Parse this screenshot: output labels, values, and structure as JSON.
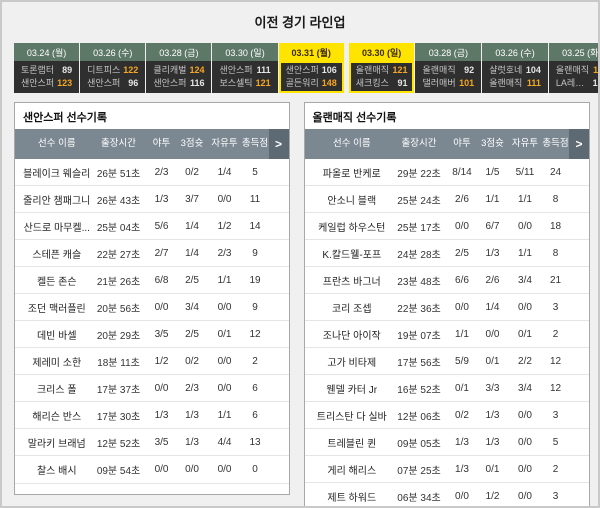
{
  "page_title": "이전 경기 라인업",
  "colors": {
    "highlight_yellow": "#ffe400",
    "win_score_orange": "#f5a623",
    "date_header_green": "#5e7868",
    "score_box_dark": "#2f2f2f",
    "table_header_gray": "#7b8791"
  },
  "recent_games": {
    "left": [
      {
        "date": "03.24 (월)",
        "highlight": false,
        "lines": [
          {
            "team": "토론랩터",
            "score": "89",
            "win": false
          },
          {
            "team": "샌안스퍼",
            "score": "123",
            "win": true
          }
        ]
      },
      {
        "date": "03.26 (수)",
        "highlight": false,
        "lines": [
          {
            "team": "디트피스",
            "score": "122",
            "win": true
          },
          {
            "team": "샌안스퍼",
            "score": "96",
            "win": false
          }
        ]
      },
      {
        "date": "03.28 (금)",
        "highlight": false,
        "lines": [
          {
            "team": "클리캐벌",
            "score": "124",
            "win": true
          },
          {
            "team": "샌안스퍼",
            "score": "116",
            "win": false
          }
        ]
      },
      {
        "date": "03.30 (일)",
        "highlight": false,
        "lines": [
          {
            "team": "샌안스퍼",
            "score": "111",
            "win": false
          },
          {
            "team": "보스셀틱",
            "score": "121",
            "win": true
          }
        ]
      },
      {
        "date": "03.31 (월)",
        "highlight": true,
        "lines": [
          {
            "team": "샌안스퍼",
            "score": "106",
            "win": false
          },
          {
            "team": "골든워리",
            "score": "148",
            "win": true
          }
        ]
      }
    ],
    "right": [
      {
        "date": "03.30 (일)",
        "highlight": true,
        "lines": [
          {
            "team": "올랜매직",
            "score": "121",
            "win": true
          },
          {
            "team": "새크킹스",
            "score": "91",
            "win": false
          }
        ]
      },
      {
        "date": "03.28 (금)",
        "highlight": false,
        "lines": [
          {
            "team": "올랜매직",
            "score": "92",
            "win": false
          },
          {
            "team": "댈러매버",
            "score": "101",
            "win": true
          }
        ]
      },
      {
        "date": "03.26 (수)",
        "highlight": false,
        "lines": [
          {
            "team": "샬럿호네",
            "score": "104",
            "win": false
          },
          {
            "team": "올랜매직",
            "score": "111",
            "win": true
          }
        ]
      },
      {
        "date": "03.25 (화)",
        "highlight": false,
        "lines": [
          {
            "team": "올랜매직",
            "score": "118",
            "win": true
          },
          {
            "team": "LA레이커",
            "score": "106",
            "win": false
          }
        ]
      },
      {
        "date": "03.22 (토)",
        "highlight": false,
        "lines": [
          {
            "team": "워싱위저",
            "score": "105",
            "win": false
          },
          {
            "team": "올랜매직",
            "score": "120",
            "win": true
          }
        ]
      }
    ]
  },
  "player_tables": [
    {
      "title": "샌안스퍼 선수기록",
      "columns": [
        "선수 이름",
        "출장시간",
        "야투",
        "3점슛",
        "자유투",
        "총득점"
      ],
      "more_chevron": ">",
      "rows": [
        {
          "name": "블레이크 웨슬리",
          "time": "26분 51초",
          "fg": "2/3",
          "tp": "0/2",
          "ft": "1/4",
          "pts": "5"
        },
        {
          "name": "줄리안 챔패그니",
          "time": "26분 43초",
          "fg": "1/3",
          "tp": "3/7",
          "ft": "0/0",
          "pts": "11"
        },
        {
          "name": "산드로 마무켈...",
          "time": "25분 04초",
          "fg": "5/6",
          "tp": "1/4",
          "ft": "1/2",
          "pts": "14"
        },
        {
          "name": "스테픈 캐슬",
          "time": "22분 27초",
          "fg": "2/7",
          "tp": "1/4",
          "ft": "2/3",
          "pts": "9"
        },
        {
          "name": "켈든 존슨",
          "time": "21분 26초",
          "fg": "6/8",
          "tp": "2/5",
          "ft": "1/1",
          "pts": "19"
        },
        {
          "name": "조던 맥러플린",
          "time": "20분 56초",
          "fg": "0/0",
          "tp": "3/4",
          "ft": "0/0",
          "pts": "9"
        },
        {
          "name": "데빈 바셀",
          "time": "20분 29초",
          "fg": "3/5",
          "tp": "2/5",
          "ft": "0/1",
          "pts": "12"
        },
        {
          "name": "제레미 소한",
          "time": "18분 11초",
          "fg": "1/2",
          "tp": "0/2",
          "ft": "0/0",
          "pts": "2"
        },
        {
          "name": "크리스 폴",
          "time": "17분 37초",
          "fg": "0/0",
          "tp": "2/3",
          "ft": "0/0",
          "pts": "6"
        },
        {
          "name": "해리슨 반스",
          "time": "17분 30초",
          "fg": "1/3",
          "tp": "1/3",
          "ft": "1/1",
          "pts": "6"
        },
        {
          "name": "말라키 브래넘",
          "time": "12분 52초",
          "fg": "3/5",
          "tp": "1/3",
          "ft": "4/4",
          "pts": "13"
        },
        {
          "name": "찰스 배시",
          "time": "09분 54초",
          "fg": "0/0",
          "tp": "0/0",
          "ft": "0/0",
          "pts": "0"
        }
      ]
    },
    {
      "title": "올랜매직 선수기록",
      "columns": [
        "선수 이름",
        "출장시간",
        "야투",
        "3점슛",
        "자유투",
        "총득점"
      ],
      "more_chevron": ">",
      "rows": [
        {
          "name": "파올로 반케로",
          "time": "29분 22초",
          "fg": "8/14",
          "tp": "1/5",
          "ft": "5/11",
          "pts": "24"
        },
        {
          "name": "안소니 블랙",
          "time": "25분 24초",
          "fg": "2/6",
          "tp": "1/1",
          "ft": "1/1",
          "pts": "8"
        },
        {
          "name": "케일럽 하우스턴",
          "time": "25분 17초",
          "fg": "0/0",
          "tp": "6/7",
          "ft": "0/0",
          "pts": "18"
        },
        {
          "name": "K.칼드웰-포프",
          "time": "24분 28초",
          "fg": "2/5",
          "tp": "1/3",
          "ft": "1/1",
          "pts": "8"
        },
        {
          "name": "프란츠 바그너",
          "time": "23분 48초",
          "fg": "6/6",
          "tp": "2/6",
          "ft": "3/4",
          "pts": "21"
        },
        {
          "name": "코리 조셉",
          "time": "22분 36초",
          "fg": "0/0",
          "tp": "1/4",
          "ft": "0/0",
          "pts": "3"
        },
        {
          "name": "조나단 아이작",
          "time": "19분 07초",
          "fg": "1/1",
          "tp": "0/0",
          "ft": "0/1",
          "pts": "2"
        },
        {
          "name": "고가 비타제",
          "time": "17분 56초",
          "fg": "5/9",
          "tp": "0/1",
          "ft": "2/2",
          "pts": "12"
        },
        {
          "name": "웬델 카터 Jr",
          "time": "16분 52초",
          "fg": "0/1",
          "tp": "3/3",
          "ft": "3/4",
          "pts": "12"
        },
        {
          "name": "트리스탄 다 실바",
          "time": "12분 06초",
          "fg": "0/2",
          "tp": "1/3",
          "ft": "0/0",
          "pts": "3"
        },
        {
          "name": "트레블린 퀸",
          "time": "09분 05초",
          "fg": "1/3",
          "tp": "1/3",
          "ft": "0/0",
          "pts": "5"
        },
        {
          "name": "게리 해리스",
          "time": "07분 25초",
          "fg": "1/3",
          "tp": "0/1",
          "ft": "0/0",
          "pts": "2"
        },
        {
          "name": "제트 하워드",
          "time": "06분 34초",
          "fg": "0/0",
          "tp": "1/2",
          "ft": "0/0",
          "pts": "3"
        }
      ]
    }
  ]
}
